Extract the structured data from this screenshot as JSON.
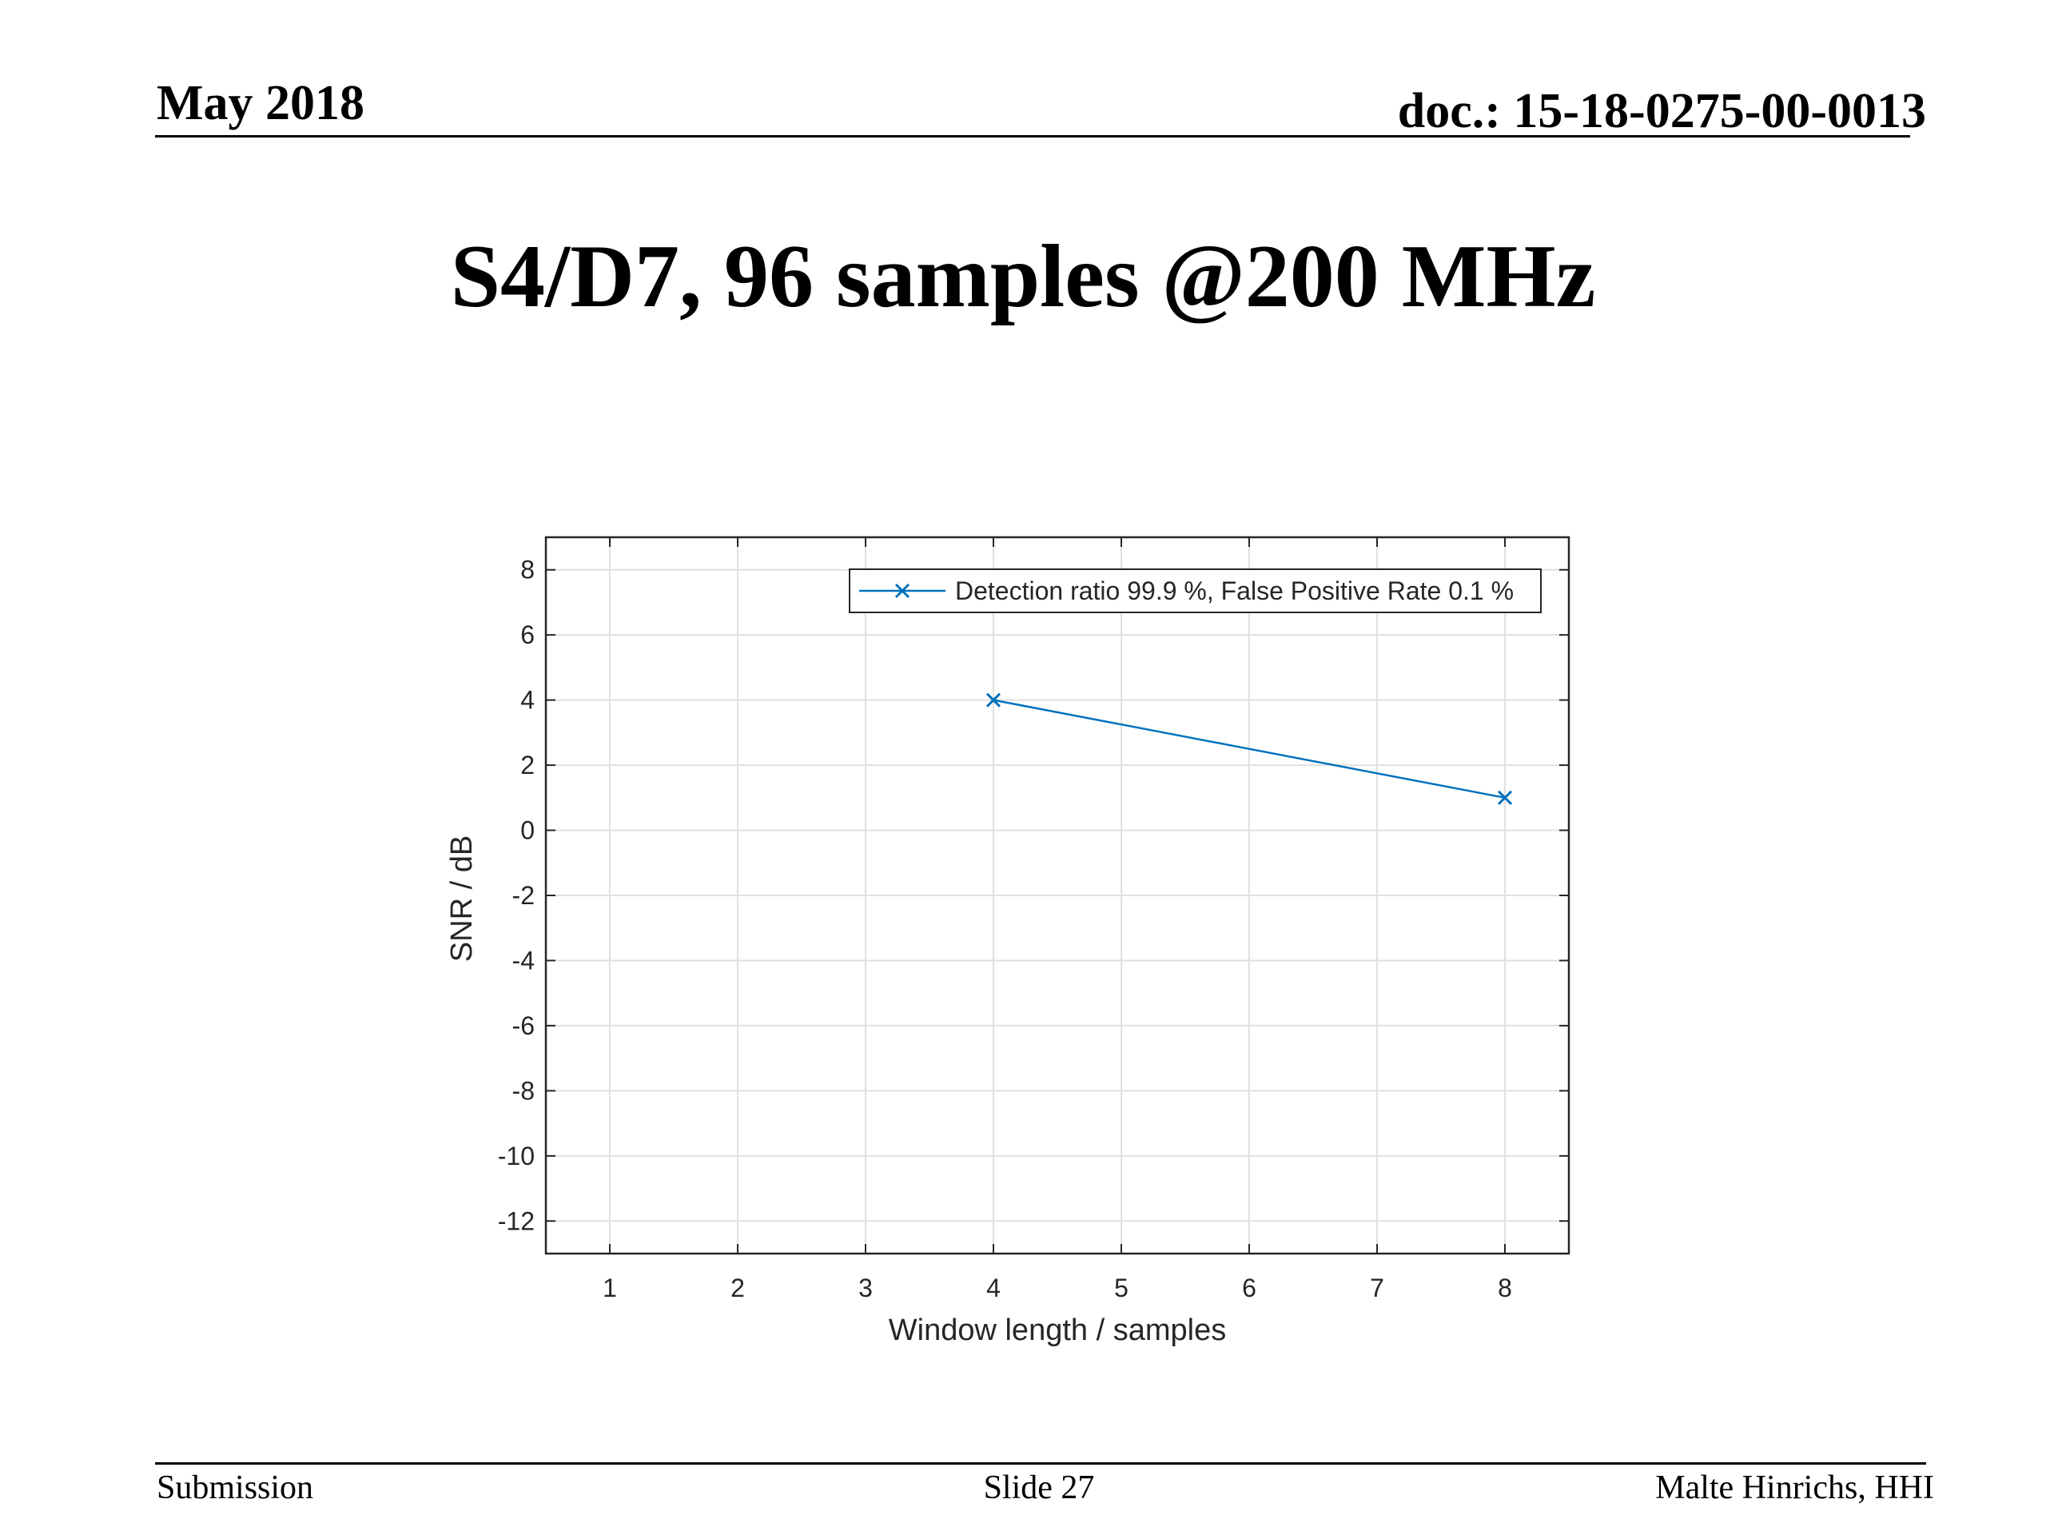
{
  "header": {
    "date": "May 2018",
    "doc_id": "doc.: 15-18-0275-00-0013"
  },
  "slide": {
    "title": "S4/D7, 96 samples @200 MHz"
  },
  "footer": {
    "left": "Submission",
    "center": "Slide 27",
    "right": "Malte Hinrichs, HHI"
  },
  "colors": {
    "series": "#0072BD",
    "axis": "#262626",
    "grid": "#e0e0e0",
    "legend_border": "#262626"
  },
  "chart_data": {
    "type": "line",
    "title": "",
    "xlabel": "Window length / samples",
    "ylabel": "SNR / dB",
    "xlim": [
      0.5,
      8.5
    ],
    "ylim": [
      -13,
      9
    ],
    "xticks": [
      1,
      2,
      3,
      4,
      5,
      6,
      7,
      8
    ],
    "yticks": [
      -12,
      -10,
      -8,
      -6,
      -4,
      -2,
      0,
      2,
      4,
      6,
      8
    ],
    "grid": true,
    "box": true,
    "legend_position": "top-right",
    "series": [
      {
        "name": "Detection ratio 99.9 %, False Positive Rate 0.1 %",
        "marker": "x",
        "x": [
          4,
          8
        ],
        "y": [
          4,
          1
        ]
      }
    ]
  }
}
